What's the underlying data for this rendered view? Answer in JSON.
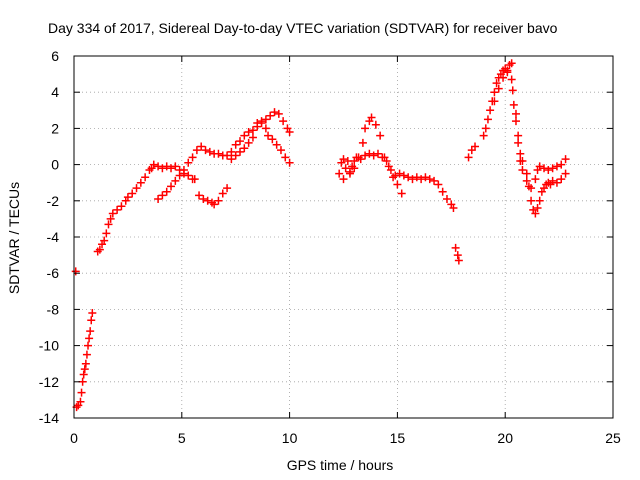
{
  "chart_data": {
    "type": "scatter",
    "title": "Day 334 of 2017, Sidereal Day-to-day VTEC variation (SDTVAR) for receiver bavo",
    "xlabel": "GPS time / hours",
    "ylabel": "SDTVAR / TECUs",
    "xlim": [
      0,
      25
    ],
    "ylim": [
      -14,
      6
    ],
    "xticks": [
      0,
      5,
      10,
      15,
      20,
      25
    ],
    "yticks": [
      -14,
      -12,
      -10,
      -8,
      -6,
      -4,
      -2,
      0,
      2,
      4,
      6
    ],
    "grid": true,
    "marker": "+",
    "series_color": "#ff0000",
    "series": [
      {
        "name": "SDTVAR",
        "points": [
          [
            0.08,
            -5.9
          ],
          [
            0.12,
            -13.4
          ],
          [
            0.2,
            -13.3
          ],
          [
            0.3,
            -13.1
          ],
          [
            0.35,
            -12.6
          ],
          [
            0.4,
            -12.0
          ],
          [
            0.45,
            -11.6
          ],
          [
            0.5,
            -11.3
          ],
          [
            0.55,
            -11.0
          ],
          [
            0.6,
            -10.5
          ],
          [
            0.65,
            -10.0
          ],
          [
            0.7,
            -9.6
          ],
          [
            0.75,
            -9.2
          ],
          [
            0.8,
            -8.6
          ],
          [
            0.85,
            -8.2
          ],
          [
            1.1,
            -4.8
          ],
          [
            1.2,
            -4.7
          ],
          [
            1.3,
            -4.4
          ],
          [
            1.4,
            -4.2
          ],
          [
            1.5,
            -3.8
          ],
          [
            1.6,
            -3.3
          ],
          [
            1.7,
            -3.0
          ],
          [
            1.8,
            -2.7
          ],
          [
            2.0,
            -2.5
          ],
          [
            2.2,
            -2.3
          ],
          [
            2.4,
            -2.0
          ],
          [
            2.5,
            -1.8
          ],
          [
            2.7,
            -1.6
          ],
          [
            2.9,
            -1.3
          ],
          [
            3.1,
            -1.0
          ],
          [
            3.3,
            -0.7
          ],
          [
            3.5,
            -0.3
          ],
          [
            3.6,
            -0.2
          ],
          [
            3.7,
            0.0
          ],
          [
            3.9,
            -0.1
          ],
          [
            4.1,
            -0.2
          ],
          [
            4.3,
            -0.1
          ],
          [
            4.5,
            -0.2
          ],
          [
            4.7,
            -0.1
          ],
          [
            4.9,
            -0.3
          ],
          [
            5.1,
            -0.5
          ],
          [
            5.3,
            -0.6
          ],
          [
            5.5,
            -0.8
          ],
          [
            5.6,
            -0.8
          ],
          [
            3.9,
            -1.9
          ],
          [
            4.1,
            -1.7
          ],
          [
            4.3,
            -1.5
          ],
          [
            4.5,
            -1.2
          ],
          [
            4.7,
            -0.9
          ],
          [
            4.9,
            -0.6
          ],
          [
            5.1,
            -0.3
          ],
          [
            5.3,
            0.1
          ],
          [
            5.5,
            0.4
          ],
          [
            5.7,
            0.8
          ],
          [
            5.9,
            1.0
          ],
          [
            6.1,
            0.8
          ],
          [
            6.3,
            0.7
          ],
          [
            6.5,
            0.6
          ],
          [
            6.7,
            0.6
          ],
          [
            6.9,
            0.5
          ],
          [
            7.1,
            0.5
          ],
          [
            7.3,
            0.7
          ],
          [
            7.5,
            1.1
          ],
          [
            7.7,
            1.3
          ],
          [
            7.9,
            1.6
          ],
          [
            8.1,
            1.8
          ],
          [
            8.3,
            1.9
          ],
          [
            8.5,
            2.3
          ],
          [
            8.7,
            2.4
          ],
          [
            8.9,
            2.5
          ],
          [
            9.1,
            2.7
          ],
          [
            9.3,
            2.9
          ],
          [
            9.5,
            2.8
          ],
          [
            9.7,
            2.4
          ],
          [
            9.9,
            2.0
          ],
          [
            10.0,
            1.8
          ],
          [
            5.8,
            -1.7
          ],
          [
            6.0,
            -1.9
          ],
          [
            6.2,
            -2.0
          ],
          [
            6.4,
            -2.1
          ],
          [
            6.5,
            -2.2
          ],
          [
            6.7,
            -2.0
          ],
          [
            6.9,
            -1.6
          ],
          [
            7.1,
            -1.3
          ],
          [
            7.3,
            0.3
          ],
          [
            7.5,
            0.5
          ],
          [
            7.7,
            0.7
          ],
          [
            7.9,
            0.9
          ],
          [
            8.1,
            1.2
          ],
          [
            8.3,
            1.5
          ],
          [
            8.5,
            2.1
          ],
          [
            8.7,
            2.3
          ],
          [
            8.9,
            2.0
          ],
          [
            9.0,
            1.6
          ],
          [
            9.2,
            1.4
          ],
          [
            9.4,
            1.1
          ],
          [
            9.6,
            0.8
          ],
          [
            9.8,
            0.4
          ],
          [
            10.0,
            0.1
          ],
          [
            12.3,
            -0.5
          ],
          [
            12.4,
            0.1
          ],
          [
            12.5,
            -0.8
          ],
          [
            12.6,
            -0.2
          ],
          [
            12.7,
            0.2
          ],
          [
            12.8,
            -0.4
          ],
          [
            12.9,
            -0.1
          ],
          [
            13.0,
            0.2
          ],
          [
            13.1,
            0.4
          ],
          [
            13.3,
            0.3
          ],
          [
            13.5,
            0.5
          ],
          [
            13.7,
            0.6
          ],
          [
            13.9,
            0.5
          ],
          [
            14.1,
            0.6
          ],
          [
            14.3,
            0.4
          ],
          [
            14.5,
            0.2
          ],
          [
            14.7,
            -0.3
          ],
          [
            14.9,
            -0.6
          ],
          [
            15.1,
            -0.5
          ],
          [
            15.3,
            -0.6
          ],
          [
            15.5,
            -0.7
          ],
          [
            15.7,
            -0.8
          ],
          [
            15.9,
            -0.7
          ],
          [
            16.1,
            -0.8
          ],
          [
            16.3,
            -0.7
          ],
          [
            16.5,
            -0.8
          ],
          [
            16.7,
            -0.9
          ],
          [
            16.9,
            -1.1
          ],
          [
            17.1,
            -1.5
          ],
          [
            17.3,
            -1.9
          ],
          [
            17.5,
            -2.2
          ],
          [
            17.6,
            -2.4
          ],
          [
            12.5,
            0.3
          ],
          [
            12.8,
            -0.5
          ],
          [
            13.0,
            -0.2
          ],
          [
            13.2,
            0.4
          ],
          [
            13.4,
            1.2
          ],
          [
            13.5,
            2.0
          ],
          [
            13.7,
            2.4
          ],
          [
            13.8,
            2.6
          ],
          [
            14.0,
            2.2
          ],
          [
            14.2,
            1.6
          ],
          [
            14.4,
            0.4
          ],
          [
            14.6,
            -0.1
          ],
          [
            14.8,
            -0.7
          ],
          [
            15.0,
            -1.1
          ],
          [
            15.2,
            -1.6
          ],
          [
            17.7,
            -4.6
          ],
          [
            17.8,
            -5.0
          ],
          [
            17.85,
            -5.3
          ],
          [
            18.3,
            0.4
          ],
          [
            18.45,
            0.8
          ],
          [
            18.6,
            1.0
          ],
          [
            19.0,
            1.6
          ],
          [
            19.1,
            2.0
          ],
          [
            19.2,
            2.5
          ],
          [
            19.3,
            3.0
          ],
          [
            19.4,
            3.5
          ],
          [
            19.5,
            4.0
          ],
          [
            19.6,
            4.5
          ],
          [
            19.7,
            4.8
          ],
          [
            19.8,
            5.0
          ],
          [
            19.9,
            5.2
          ],
          [
            20.0,
            5.3
          ],
          [
            20.1,
            5.2
          ],
          [
            20.2,
            5.5
          ],
          [
            20.3,
            4.7
          ],
          [
            20.4,
            3.3
          ],
          [
            20.5,
            2.4
          ],
          [
            20.6,
            1.6
          ],
          [
            20.7,
            0.6
          ],
          [
            20.8,
            0.2
          ],
          [
            21.0,
            -0.5
          ],
          [
            21.1,
            -1.2
          ],
          [
            21.2,
            -2.0
          ],
          [
            21.3,
            -2.5
          ],
          [
            21.4,
            -2.7
          ],
          [
            21.5,
            -2.4
          ],
          [
            21.6,
            -2.0
          ],
          [
            21.7,
            -1.5
          ],
          [
            21.8,
            -1.3
          ],
          [
            21.9,
            -1.1
          ],
          [
            22.0,
            -1.0
          ],
          [
            22.1,
            -1.1
          ],
          [
            22.2,
            -0.9
          ],
          [
            22.4,
            -1.0
          ],
          [
            22.6,
            -0.8
          ],
          [
            22.8,
            -0.5
          ],
          [
            19.5,
            3.5
          ],
          [
            19.7,
            4.2
          ],
          [
            19.9,
            4.8
          ],
          [
            20.1,
            5.1
          ],
          [
            20.3,
            5.6
          ],
          [
            20.35,
            4.1
          ],
          [
            20.5,
            2.8
          ],
          [
            20.6,
            1.2
          ],
          [
            20.7,
            0.2
          ],
          [
            20.8,
            -0.3
          ],
          [
            21.0,
            -0.9
          ],
          [
            21.2,
            -1.3
          ],
          [
            21.4,
            -0.8
          ],
          [
            21.5,
            -0.3
          ],
          [
            21.6,
            -0.1
          ],
          [
            21.8,
            -0.2
          ],
          [
            22.0,
            -0.3
          ],
          [
            22.2,
            -0.2
          ],
          [
            22.4,
            -0.1
          ],
          [
            22.6,
            0.0
          ],
          [
            22.8,
            0.3
          ]
        ]
      }
    ]
  }
}
